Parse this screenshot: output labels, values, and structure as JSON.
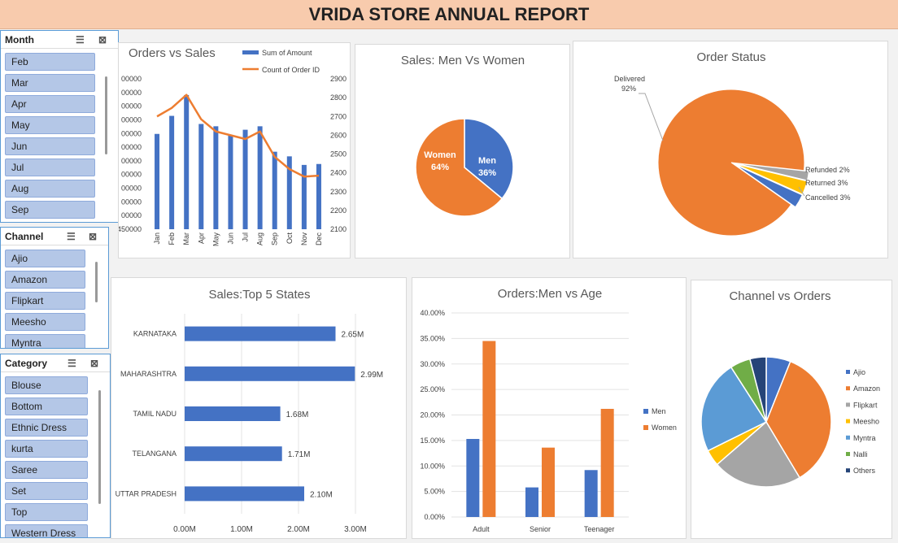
{
  "title": "VRIDA STORE ANNUAL REPORT",
  "slicers": {
    "month": {
      "header": "Month",
      "items": [
        "Feb",
        "Mar",
        "Apr",
        "May",
        "Jun",
        "Jul",
        "Aug",
        "Sep"
      ]
    },
    "channel": {
      "header": "Channel",
      "items": [
        "Ajio",
        "Amazon",
        "Flipkart",
        "Meesho",
        "Myntra"
      ]
    },
    "category": {
      "header": "Category",
      "items": [
        "Blouse",
        "Bottom",
        "Ethnic Dress",
        "kurta",
        "Saree",
        "Set",
        "Top",
        "Western Dress"
      ]
    }
  },
  "icons": {
    "multiselect": "multi-select-icon",
    "clear": "clear-filter-icon"
  },
  "colors": {
    "blue": "#4472c4",
    "orange": "#ed7d31",
    "gray": "#a5a5a5",
    "yellow": "#ffc000",
    "lightblue": "#5b9bd5",
    "green": "#70ad47",
    "navy": "#264478"
  },
  "chart_data": [
    {
      "id": "orders_vs_sales",
      "type": "bar",
      "title": "Orders vs Sales",
      "categories": [
        "Jan",
        "Feb",
        "Mar",
        "Apr",
        "May",
        "Jun",
        "Jul",
        "Aug",
        "Sep",
        "Oct",
        "Nov",
        "Dec"
      ],
      "series": [
        {
          "name": "Sum of Amount",
          "type": "bar",
          "axis": "left",
          "values": [
            1862000,
            1940000,
            2030000,
            1905000,
            1895000,
            1855000,
            1880000,
            1895000,
            1785000,
            1765000,
            1728000,
            1732000
          ]
        },
        {
          "name": "Count of Order ID",
          "type": "line",
          "axis": "right",
          "values": [
            2700,
            2745,
            2815,
            2685,
            2620,
            2600,
            2580,
            2620,
            2485,
            2420,
            2380,
            2385
          ]
        }
      ],
      "y_left_ticks": [
        "00000",
        "00000",
        "00000",
        "00000",
        "00000",
        "00000",
        "00000",
        "00000",
        "00000",
        "00000",
        "00000",
        "1450000"
      ],
      "y_left_range": [
        1450000,
        2100000
      ],
      "y_right_ticks": [
        "2900",
        "2800",
        "2700",
        "2600",
        "2500",
        "2400",
        "2300",
        "2200",
        "2100"
      ],
      "y_right_range": [
        2100,
        2900
      ],
      "legend_position": "top-right"
    },
    {
      "id": "sales_men_women",
      "type": "pie",
      "title": "Sales: Men Vs Women",
      "slices": [
        {
          "name": "Men",
          "value": 36,
          "label": "36%"
        },
        {
          "name": "Women",
          "value": 64,
          "label": "64%"
        }
      ]
    },
    {
      "id": "order_status",
      "type": "pie",
      "title": "Order Status",
      "slices": [
        {
          "name": "Delivered",
          "value": 92,
          "label": "92%"
        },
        {
          "name": "Refunded",
          "value": 2,
          "label": "2%"
        },
        {
          "name": "Returned",
          "value": 3,
          "label": "3%"
        },
        {
          "name": "Cancelled",
          "value": 3,
          "label": "3%"
        }
      ]
    },
    {
      "id": "top5_states",
      "type": "bar",
      "orientation": "horizontal",
      "title": "Sales:Top 5 States",
      "categories": [
        "KARNATAKA",
        "MAHARASHTRA",
        "TAMIL NADU",
        "TELANGANA",
        "UTTAR PRADESH"
      ],
      "values": [
        2.65,
        2.99,
        1.68,
        1.71,
        2.1
      ],
      "data_labels": [
        "2.65M",
        "2.99M",
        "1.68M",
        "1.71M",
        "2.10M"
      ],
      "x_ticks": [
        "0.00M",
        "1.00M",
        "2.00M",
        "3.00M"
      ],
      "xlim": [
        0,
        3
      ]
    },
    {
      "id": "orders_men_age",
      "type": "bar",
      "title": "Orders:Men vs Age",
      "categories": [
        "Adult",
        "Senior",
        "Teenager"
      ],
      "series": [
        {
          "name": "Men",
          "values": [
            15.3,
            5.8,
            9.2
          ]
        },
        {
          "name": "Women",
          "values": [
            34.5,
            13.6,
            21.2
          ]
        }
      ],
      "y_ticks": [
        "0.00%",
        "5.00%",
        "10.00%",
        "15.00%",
        "20.00%",
        "25.00%",
        "30.00%",
        "35.00%",
        "40.00%"
      ],
      "ylim": [
        0,
        40
      ],
      "legend_position": "right"
    },
    {
      "id": "channel_vs_orders",
      "type": "pie",
      "title": "Channel vs Orders",
      "slices": [
        {
          "name": "Ajio",
          "value": 6
        },
        {
          "name": "Amazon",
          "value": 35
        },
        {
          "name": "Flipkart",
          "value": 22
        },
        {
          "name": "Meesho",
          "value": 4
        },
        {
          "name": "Myntra",
          "value": 23
        },
        {
          "name": "Nalli",
          "value": 5
        },
        {
          "name": "Others",
          "value": 4
        }
      ],
      "legend_position": "right"
    }
  ]
}
